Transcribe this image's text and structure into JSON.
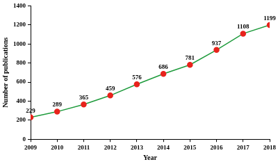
{
  "chart_data": {
    "type": "line",
    "x_label": "Year",
    "y_label": "Number of publications",
    "categories": [
      "2009",
      "2010",
      "2011",
      "2012",
      "2013",
      "2014",
      "2015",
      "2016",
      "2017",
      "2018"
    ],
    "values": [
      229,
      289,
      365,
      459,
      576,
      686,
      781,
      937,
      1108,
      1199
    ],
    "color": "#1e9b3c",
    "marker": "circle",
    "line_style": "solid",
    "ylim": [
      0,
      1400
    ],
    "yticks": [
      0,
      200,
      400,
      600,
      800,
      1000,
      1200,
      1400
    ],
    "grid": false,
    "data_labels": true
  }
}
